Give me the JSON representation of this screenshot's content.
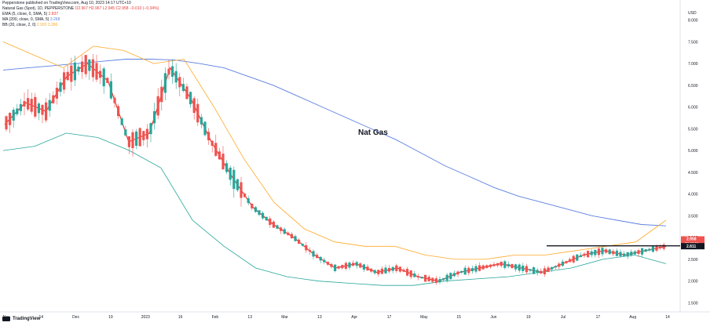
{
  "publisher_line": "Pepperstone published on TradingView.com, Aug 10, 2023 14:17 UTC+10",
  "legend": {
    "symbol_line_name": "Natural Gas (Spot), 1D, PEPPERSTONE",
    "symbol_line_values": "O2.967 H2.967 L2.945 C2.958 −0.010 (−0.34%)",
    "ema_name": "EMA (5, close, 0, SMA, 5)",
    "ema_value": "2.837",
    "ma_name": "MA (200, close, 0, SMA, 5)",
    "ma_value": "3.268",
    "bb_name": "BB (20, close, 2, 0)",
    "bb_value": "2.920 3.396"
  },
  "annotation": "Nat Gas",
  "currency": "USD",
  "price_tag": {
    "price": "2.958",
    "countdown": "09:42:04"
  },
  "level_tag": "2.811",
  "watermark": "TradingView",
  "colors": {
    "up": "#26a69a",
    "down": "#ef5350",
    "ema": "#e53935",
    "ma200": "#5b7fe0",
    "bb_upper": "#ffa726",
    "bb_lower": "#26a69a",
    "level": "#131722"
  },
  "chart_data": {
    "type": "line",
    "title": "",
    "annotation": "Nat Gas",
    "x_tick_labels": [
      "Nov",
      "14",
      "Dec",
      "19",
      "2023",
      "16",
      "Feb",
      "13",
      "Mar",
      "13",
      "Apr",
      "17",
      "May",
      "15",
      "Jun",
      "19",
      "Jul",
      "17",
      "Aug",
      "14"
    ],
    "y_tick_labels": [
      "8.000",
      "7.500",
      "7.000",
      "6.500",
      "6.000",
      "5.500",
      "5.000",
      "4.500",
      "4.000",
      "3.500",
      "3.000",
      "2.500",
      "2.000",
      "1.500"
    ],
    "ylim": [
      1.4,
      8.1
    ],
    "grid": false,
    "horizontal_level": 2.811,
    "last_close": 2.958,
    "series": [
      {
        "name": "EMA (5, close, 0, SMA, 5)",
        "values": [
          5.6,
          6.1,
          5.9,
          6.7,
          7.0,
          6.6,
          5.2,
          5.4,
          6.9,
          6.2,
          5.2,
          4.4,
          3.7,
          3.3,
          3.0,
          2.6,
          2.3,
          2.4,
          2.2,
          2.3,
          2.1,
          2.0,
          2.2,
          2.3,
          2.4,
          2.3,
          2.2,
          2.4,
          2.6,
          2.7,
          2.6,
          2.7,
          2.8
        ]
      },
      {
        "name": "MA (200, close, 0, SMA, 5)",
        "values": [
          6.85,
          6.9,
          6.95,
          7.0,
          7.05,
          7.1,
          7.1,
          7.08,
          7.0,
          6.9,
          6.7,
          6.5,
          6.25,
          6.0,
          5.75,
          5.5,
          5.25,
          4.95,
          4.65,
          4.4,
          4.15,
          3.95,
          3.8,
          3.65,
          3.5,
          3.4,
          3.3,
          3.27
        ]
      },
      {
        "name": "BB upper",
        "values": [
          7.5,
          7.2,
          6.9,
          7.4,
          7.3,
          7.0,
          7.1,
          6.0,
          4.8,
          3.8,
          3.2,
          2.9,
          2.8,
          2.8,
          2.6,
          2.5,
          2.5,
          2.6,
          2.6,
          2.7,
          2.8,
          2.9,
          3.4
        ]
      },
      {
        "name": "BB lower",
        "values": [
          5.0,
          5.1,
          5.4,
          5.3,
          5.0,
          4.6,
          3.4,
          2.8,
          2.3,
          2.1,
          2.0,
          1.95,
          1.9,
          1.9,
          2.0,
          2.05,
          2.1,
          2.2,
          2.3,
          2.5,
          2.6,
          2.4
        ]
      }
    ]
  }
}
